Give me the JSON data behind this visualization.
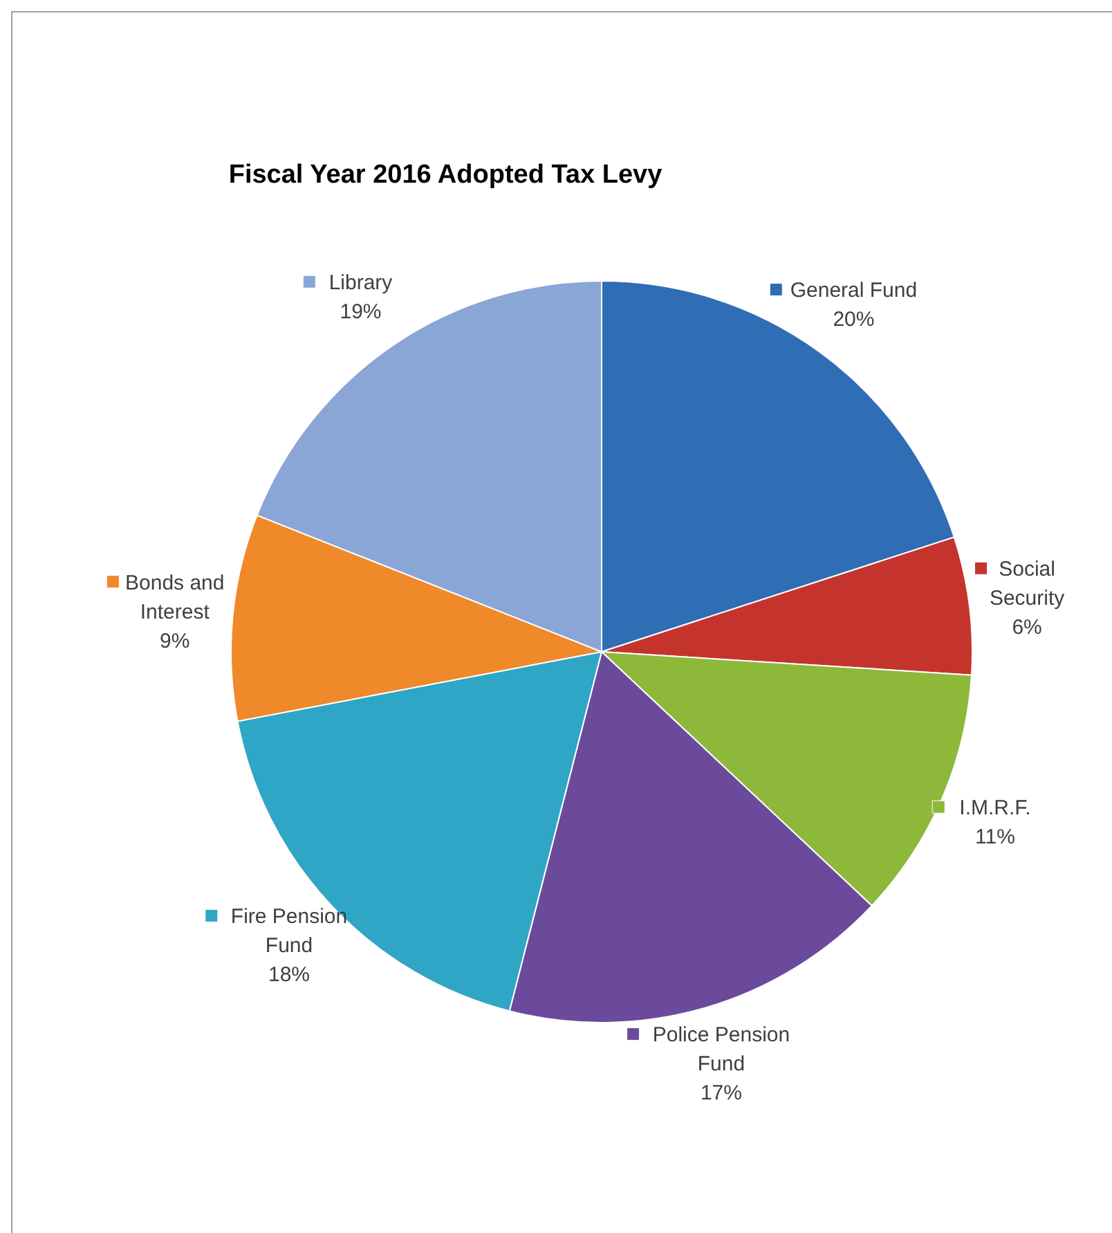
{
  "chart_data": {
    "type": "pie",
    "title": "Fiscal Year 2016 Adopted Tax Levy",
    "categories": [
      "General Fund",
      "Social Security",
      "I.M.R.F.",
      "Police Pension Fund",
      "Fire Pension Fund",
      "Bonds and Interest",
      "Library"
    ],
    "values": [
      20,
      6,
      11,
      17,
      18,
      9,
      19
    ],
    "colors": [
      "#2f6db5",
      "#c4342d",
      "#8db83a",
      "#6b4a9b",
      "#2fa6c5",
      "#f0892a",
      "#8aa6d6"
    ],
    "legend": "right",
    "value_labels": [
      "20%",
      "6%",
      "11%",
      "17%",
      "18%",
      "9%",
      "19%"
    ]
  }
}
